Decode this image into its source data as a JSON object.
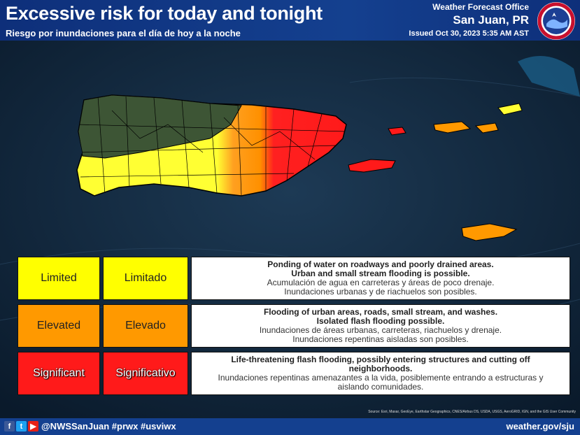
{
  "header": {
    "title": "Excessive risk for today and tonight",
    "subtitle": "Riesgo por inundaciones para el día de hoy a la noche",
    "office_line": "Weather Forecast Office",
    "office_city": "San Juan, PR",
    "issued": "Issued Oct 30, 2023 5:35 AM AST"
  },
  "legend": [
    {
      "level_en": "Limited",
      "level_es": "Limitado",
      "color": "#ffff00",
      "desc_en_1": "Ponding of water on roadways and poorly drained areas.",
      "desc_en_2": "Urban and small stream flooding is possible.",
      "desc_es_1": "Acumulación de agua en carreteras y áreas de poco drenaje.",
      "desc_es_2": "Inundaciones urbanas y de riachuelos son posibles."
    },
    {
      "level_en": "Elevated",
      "level_es": "Elevado",
      "color": "#ff9900",
      "desc_en_1": "Flooding of urban areas, roads, small stream, and washes.",
      "desc_en_2": "Isolated flash flooding possible.",
      "desc_es_1": "Inundaciones de áreas urbanas, carreteras, riachuelos y drenaje.",
      "desc_es_2": "Inundaciones repentinas aisladas son posibles."
    },
    {
      "level_en": "Significant",
      "level_es": "Significativo",
      "color": "#ff1a1a",
      "desc_en_1": "Life-threatening flash flooding, possibly entering structures and cutting off",
      "desc_en_2": "neighborhoods.",
      "desc_es_1": "Inundaciones repentinas amenazantes a la vida, posiblemente entrando a estructuras y",
      "desc_es_2": "aislando comunidades."
    }
  ],
  "footer": {
    "handle": "@NWSSanJuan #prwx #usviwx",
    "site": "weather.gov/sju",
    "social_icons": [
      "facebook-icon",
      "twitter-icon",
      "youtube-icon"
    ]
  },
  "credits": "Source: Esri, Maxar, GeoEye, Earthstar Geographics, CNES/Airbus DS, USDA, USGS, AeroGRID, IGN, and the GIS User Community",
  "colors": {
    "header_bg": "#14408f",
    "limited": "#ffff00",
    "elevated": "#ff9900",
    "significant": "#ff1a1a"
  }
}
